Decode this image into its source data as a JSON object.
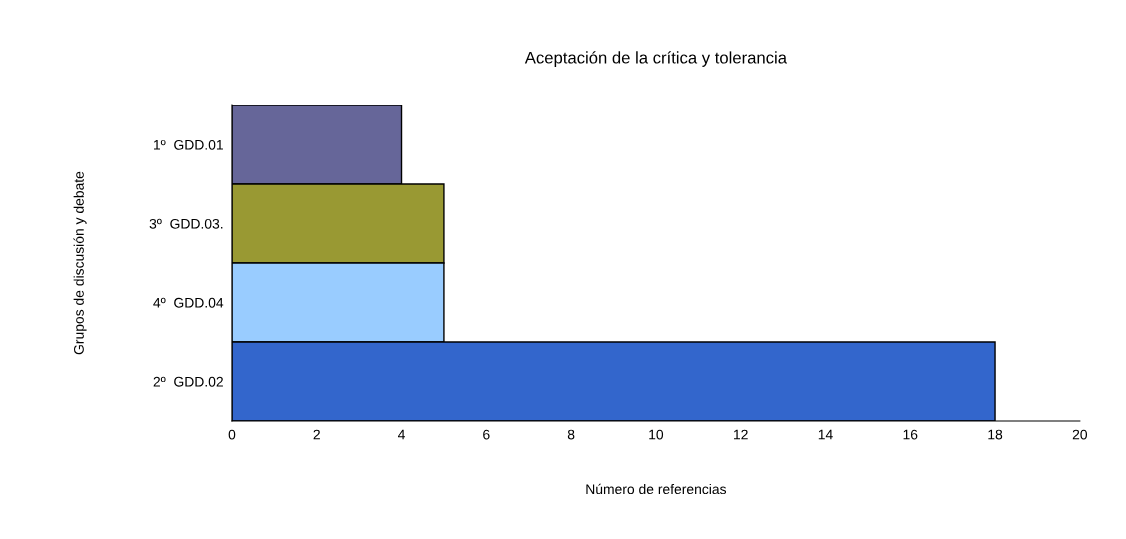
{
  "chart_data": {
    "type": "bar",
    "orientation": "horizontal",
    "title": "Aceptación de la crítica y tolerancia",
    "xlabel": "Número de referencias",
    "ylabel": "Grupos de discusión y debate",
    "categories": [
      "1º  GDD.01",
      "3º  GDD.03.",
      "4º  GDD.04",
      "2º  GDD.02"
    ],
    "values": [
      4,
      5,
      5,
      18
    ],
    "colors": [
      "#666699",
      "#999933",
      "#99ccff",
      "#3366cc"
    ],
    "xlim": [
      0,
      20
    ],
    "xticks": [
      0,
      2,
      4,
      6,
      8,
      10,
      12,
      14,
      16,
      18,
      20
    ],
    "grid": false,
    "legend": false
  }
}
